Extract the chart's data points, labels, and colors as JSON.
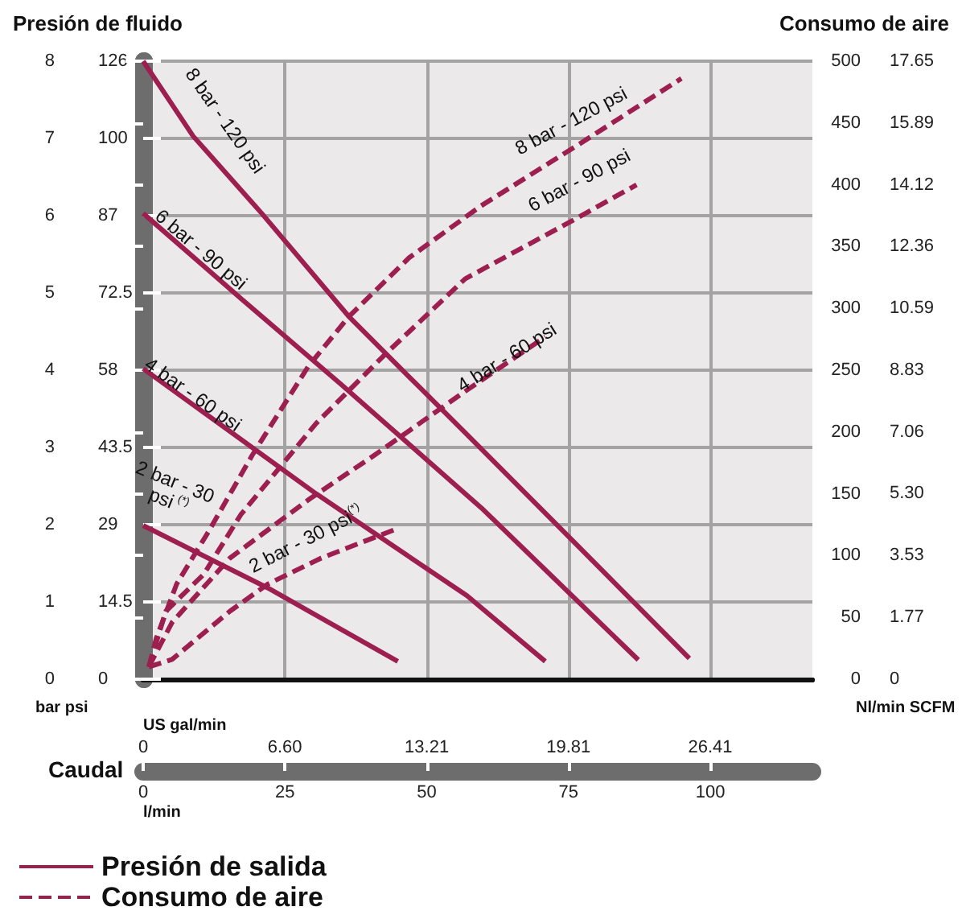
{
  "chart_data": {
    "type": "line",
    "ylabel": "Presión de fluido",
    "y2label": "Consumo de aire",
    "xlabel": "l/min",
    "x2label": "US gal/min",
    "xlim": [
      0,
      118
    ],
    "xticks": [
      0,
      25,
      50,
      75,
      100
    ],
    "x2lim": [
      0,
      31.17
    ],
    "x2ticks": [
      0,
      {
        "value": 6.6,
        "label": "6.60"
      },
      13.21,
      19.81,
      26.41
    ],
    "ylim": [
      0,
      8
    ],
    "yticks": [
      0,
      1,
      2,
      3,
      4,
      5,
      6,
      7,
      8
    ],
    "y2lim": [
      0,
      500
    ],
    "y2ticks": [
      0,
      50,
      100,
      150,
      200,
      250,
      300,
      350,
      400,
      450,
      500
    ],
    "y3lim": [
      0,
      17.65
    ],
    "y3ticks": [
      0,
      1.77,
      3.53,
      {
        "value": 5.3,
        "label": "5.30"
      },
      7.06,
      8.83,
      10.59,
      12.36,
      14.12,
      15.89,
      17.65
    ],
    "grid": true,
    "legend": "bottom left",
    "marker": "none",
    "series": [
      {
        "name": "Presión de salida",
        "color": "#9c1f50",
        "line_style": "solid",
        "x": [
          0,
          8.8,
          20.9,
          36.2,
          48.3,
          56.8,
          75.1,
          96.3
        ],
        "values": [
          8.0,
          7.03,
          6.03,
          4.7,
          3.81,
          3.19,
          1.84,
          0.27
        ]
      },
      {
        "color": "#9c1f50",
        "line_style": "solid",
        "x": [
          0,
          17.2,
          35.0,
          59.6,
          87.3
        ],
        "values": [
          6.03,
          4.93,
          3.81,
          2.22,
          0.25
        ]
      },
      {
        "color": "#9c1f50",
        "line_style": "solid",
        "x": [
          0,
          30.5,
          57.1,
          70.9
        ],
        "values": [
          4.02,
          2.4,
          1.08,
          0.23
        ]
      },
      {
        "color": "#9c1f50",
        "line_style": "solid",
        "x": [
          0,
          22.0,
          44.9
        ],
        "values": [
          1.99,
          1.18,
          0.23
        ]
      },
      {
        "name": "Consumo de aire",
        "color": "#9c1f50",
        "line_style": "dashed",
        "axis": "y2",
        "x": [
          1,
          2.3,
          5.9,
          11.6,
          19.2,
          29.1,
          36.2,
          46.9,
          59.6,
          76.6,
          94.9
        ],
        "values": [
          10,
          33,
          77,
          120,
          181,
          253,
          293,
          341,
          383,
          432,
          486
        ]
      },
      {
        "color": "#9c1f50",
        "line_style": "dashed",
        "axis": "y2",
        "x": [
          1,
          4.0,
          10.7,
          17.2,
          30.5,
          42.7,
          56.8,
          75.7,
          87.0
        ],
        "values": [
          10,
          55,
          85,
          133,
          207,
          263,
          324,
          371,
          400
        ]
      },
      {
        "color": "#9c1f50",
        "line_style": "dashed",
        "axis": "y2",
        "x": [
          1,
          5.1,
          15.3,
          29.4,
          40.7,
          56.8,
          70.9
        ],
        "values": [
          10,
          46,
          98,
          146,
          181,
          233,
          277
        ]
      },
      {
        "color": "#9c1f50",
        "line_style": "dashed",
        "axis": "y2",
        "x": [
          1,
          5.1,
          15.3,
          22.0,
          31.4,
          44.9
        ],
        "values": [
          10,
          16,
          55,
          77,
          98,
          122
        ]
      }
    ],
    "annotations": [
      "8 bar - 120 psi",
      "6 bar - 90 psi",
      "4 bar - 60 psi",
      "2 bar - 30 psi$^{(*)}$",
      "8 bar - 120 psi",
      "6 bar - 90 psi",
      "4 bar - 60 psi",
      "2 bar - 30 psi$^{(*)}$",
      "bar psi",
      "Nl/min SCFM",
      "Caudal",
      "0",
      "14.5",
      "29",
      "43.5",
      "58",
      "72.5",
      "87",
      "100",
      "126"
    ]
  }
}
